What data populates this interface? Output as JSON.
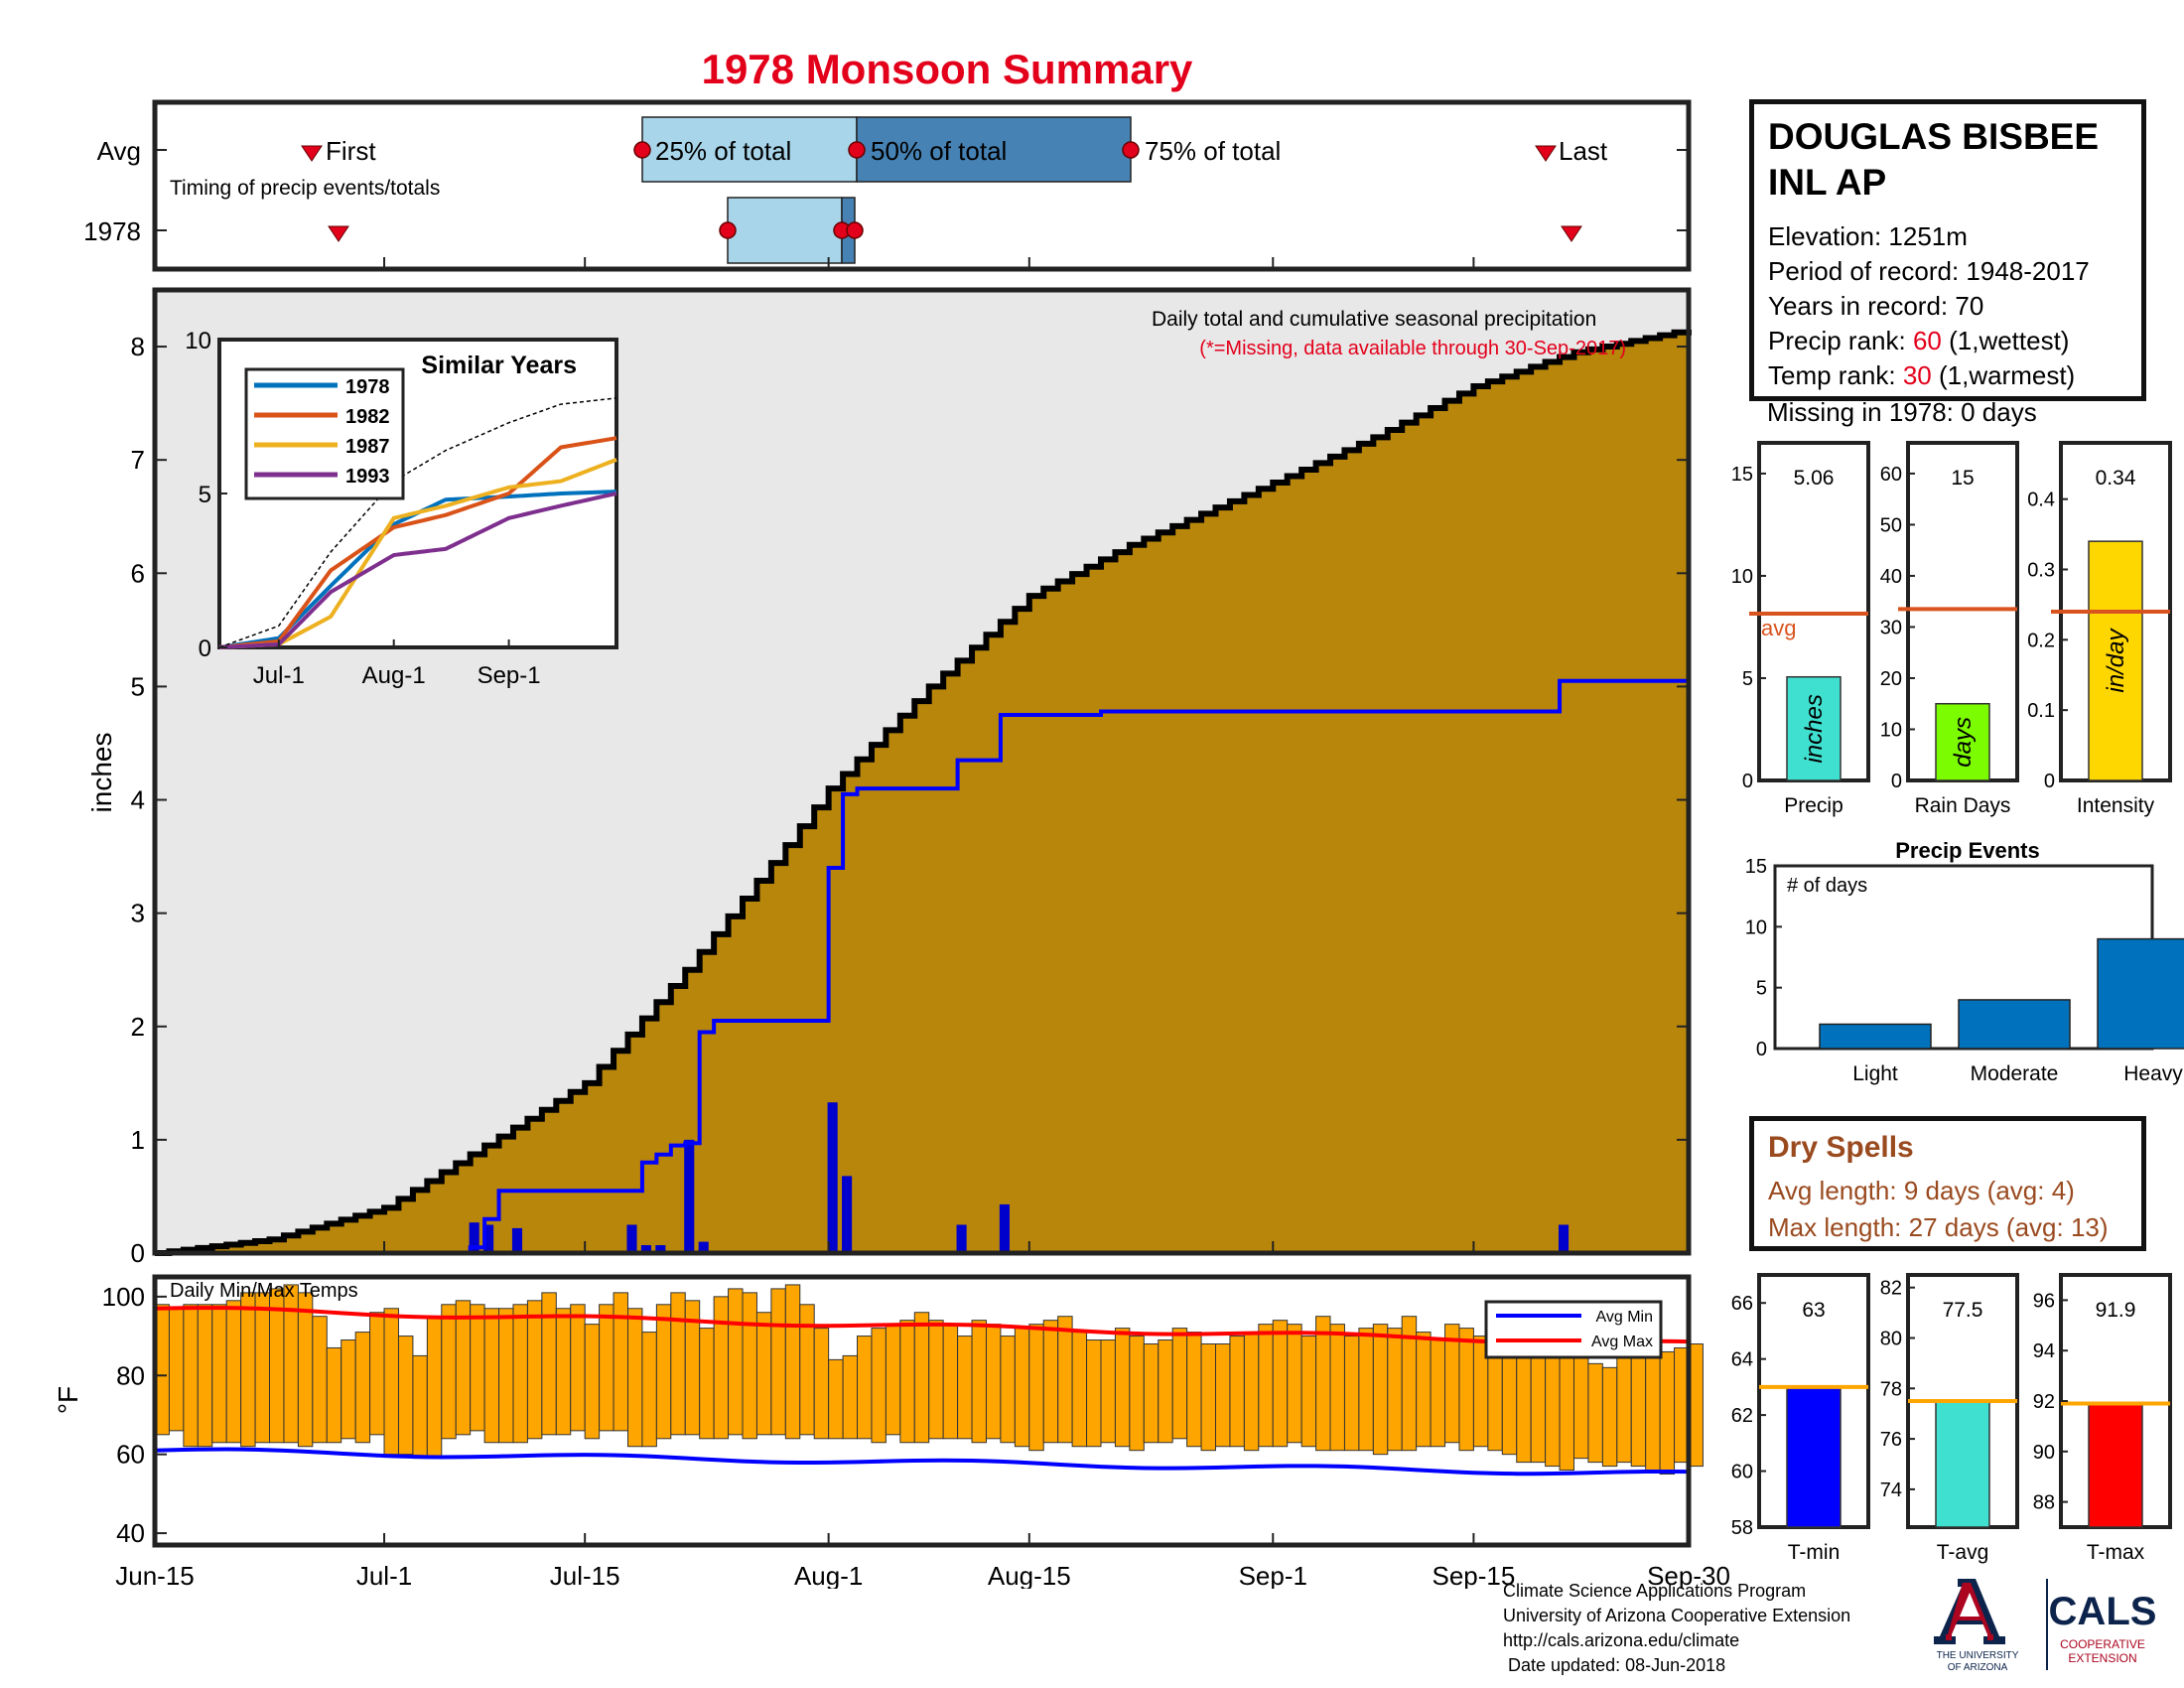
{
  "title": "1978 Monsoon Summary",
  "station": {
    "name": "DOUGLAS BISBEE\nINL AP",
    "elevation": "Elevation: 1251m",
    "period": "Period of record: 1948-2017",
    "years": "Years in record: 70",
    "precip_rank_label": "Precip rank: ",
    "precip_rank": "60",
    "precip_rank_note": " (1,wettest)",
    "temp_rank_label": "Temp rank: ",
    "temp_rank": "30",
    "temp_rank_note": " (1,warmest)",
    "missing": "Missing in 1978: 0 days"
  },
  "timing": {
    "row_labels": [
      "Avg",
      "1978"
    ],
    "note": "Timing of precip events/totals",
    "first_label": "First",
    "last_label": "Last",
    "p25_label": "25% of total",
    "p50_label": "50% of total",
    "p75_label": "75% of total"
  },
  "main_chart": {
    "annotation": "Daily total and cumulative seasonal precipitation",
    "missing_note": "(*=Missing, data available through 30-Sep-2017)",
    "ylabel": "inches",
    "yticks": [
      "0",
      "1",
      "2",
      "3",
      "4",
      "5",
      "6",
      "7",
      "8"
    ],
    "xticks": [
      "Jun-15",
      "Jul-1",
      "Jul-15",
      "Aug-1",
      "Aug-15",
      "Sep-1",
      "Sep-15",
      "Sep-30"
    ]
  },
  "inset": {
    "title": "Similar Years",
    "yticks": [
      "0",
      "5",
      "10"
    ],
    "xticks": [
      "Jul-1",
      "Aug-1",
      "Sep-1"
    ],
    "legend": [
      "1978",
      "1982",
      "1987",
      "1993"
    ]
  },
  "temp_chart": {
    "title": "Daily Min/Max Temps",
    "ylabel": "°F",
    "yticks": [
      "40",
      "60",
      "80",
      "100"
    ],
    "legend": [
      "Avg Min",
      "Avg Max"
    ]
  },
  "stats": {
    "precip": {
      "label": "Precip",
      "value_text": "5.06",
      "unit": "inches",
      "avg_text": "avg",
      "yticks": [
        "0",
        "5",
        "10",
        "15"
      ]
    },
    "rain_days": {
      "label": "Rain Days",
      "value_text": "15",
      "unit": "days",
      "yticks": [
        "0",
        "10",
        "20",
        "30",
        "40",
        "50",
        "60"
      ]
    },
    "intensity": {
      "label": "Intensity",
      "value_text": "0.34",
      "unit": "in/day",
      "yticks": [
        "0",
        "0.1",
        "0.2",
        "0.3",
        "0.4"
      ]
    }
  },
  "events": {
    "title": "Precip Events",
    "ylabel": "# of days",
    "categories": [
      "Light",
      "Moderate",
      "Heavy"
    ],
    "yticks": [
      "0",
      "5",
      "10",
      "15"
    ]
  },
  "dry_spells": {
    "title": "Dry Spells",
    "avg": "Avg length: 9 days (avg: 4)",
    "max": "Max length: 27 days (avg: 13)"
  },
  "temps": {
    "tmin": {
      "label": "T-min",
      "value_text": "63",
      "yticks": [
        "58",
        "60",
        "62",
        "64",
        "66"
      ]
    },
    "tavg": {
      "label": "T-avg",
      "value_text": "77.5",
      "yticks": [
        "74",
        "76",
        "78",
        "80",
        "82"
      ]
    },
    "tmax": {
      "label": "T-max",
      "value_text": "91.9",
      "yticks": [
        "88",
        "90",
        "92",
        "94",
        "96"
      ]
    }
  },
  "footer": "Climate Science Applications Program\nUniversity of Arizona Cooperative Extension\nhttp://cals.arizona.edu/climate\n Date updated: 08-Jun-2018",
  "logos": {
    "ua_name": "THE UNIVERSITY\nOF ARIZONA",
    "cals": "CALS",
    "cals_sub": "COOPERATIVE\nEXTENSION"
  },
  "colors": {
    "title_red": "#e3001b",
    "cumulative_avg": "#b8860b",
    "cumulative_year": "#0000ff",
    "temp_bar": "#ffa500",
    "avg_line": "#d9531e",
    "dry_text": "#9a4a1f",
    "box_light": "#a8d5ea",
    "box_dark": "#4682b4"
  },
  "chart_data": [
    {
      "type": "line",
      "title": "Daily total and cumulative seasonal precipitation",
      "ylabel": "inches",
      "ylim": [
        0,
        8.5
      ],
      "x_dates_note": "day of season",
      "series": [
        {
          "name": "Avg cumulative",
          "x": [
            "Jun-15",
            "Jun-23",
            "Jul-1",
            "Jul-8",
            "Jul-15",
            "Jul-22",
            "Jul-29",
            "Aug-1",
            "Aug-8",
            "Aug-15",
            "Aug-22",
            "Sep-1",
            "Sep-8",
            "Sep-15",
            "Sep-22",
            "Sep-30"
          ],
          "values": [
            0.0,
            0.12,
            0.4,
            0.95,
            1.5,
            2.5,
            3.6,
            4.1,
            5.0,
            5.8,
            6.25,
            6.8,
            7.2,
            7.65,
            7.95,
            8.15
          ]
        },
        {
          "name": "1978 cumulative",
          "x": [
            "Jun-15",
            "Jul-7",
            "Jul-8",
            "Jul-9",
            "Jul-10",
            "Jul-13",
            "Jul-18",
            "Jul-19",
            "Jul-20",
            "Jul-21",
            "Jul-22",
            "Jul-23",
            "Jul-24",
            "Jul-25",
            "Aug-1",
            "Aug-2",
            "Aug-3",
            "Aug-10",
            "Aug-13",
            "Aug-20",
            "Sep-20",
            "Sep-21",
            "Sep-30"
          ],
          "values": [
            0.0,
            0.05,
            0.3,
            0.55,
            0.55,
            0.55,
            0.55,
            0.8,
            0.87,
            0.95,
            0.97,
            1.95,
            2.05,
            2.05,
            3.4,
            4.05,
            4.1,
            4.35,
            4.75,
            4.78,
            4.78,
            5.05,
            5.06
          ]
        }
      ],
      "daily_bars": {
        "name": "1978 daily precip",
        "x": [
          "Jul-7",
          "Jul-8",
          "Jul-10",
          "Jul-18",
          "Jul-19",
          "Jul-20",
          "Jul-22",
          "Jul-23",
          "Aug-1",
          "Aug-2",
          "Aug-10",
          "Aug-13",
          "Sep-21"
        ],
        "values": [
          0.27,
          0.25,
          0.22,
          0.25,
          0.07,
          0.07,
          1.0,
          0.1,
          1.33,
          0.68,
          0.25,
          0.43,
          0.25
        ]
      }
    },
    {
      "type": "line",
      "title": "Similar Years",
      "ylim": [
        0,
        10
      ],
      "categories": [
        "Jun-15",
        "Jul-1",
        "Jul-15",
        "Aug-1",
        "Aug-15",
        "Sep-1",
        "Sep-15",
        "Sep-30"
      ],
      "series": [
        {
          "name": "1978",
          "values": [
            0,
            0.3,
            2.0,
            4.0,
            4.8,
            4.9,
            5.0,
            5.06
          ]
        },
        {
          "name": "1982",
          "values": [
            0,
            0.2,
            2.5,
            3.9,
            4.3,
            5.0,
            6.5,
            6.8
          ]
        },
        {
          "name": "1987",
          "values": [
            0,
            0.1,
            1.0,
            4.2,
            4.6,
            5.2,
            5.4,
            6.1
          ]
        },
        {
          "name": "1993",
          "values": [
            0,
            0.1,
            1.8,
            3.0,
            3.2,
            4.2,
            4.6,
            5.0
          ]
        },
        {
          "name": "avg",
          "values": [
            0,
            0.7,
            3.1,
            5.4,
            6.4,
            7.3,
            7.9,
            8.1
          ]
        }
      ]
    },
    {
      "type": "bar",
      "title": "Daily Min/Max Temps",
      "ylabel": "°F",
      "ylim": [
        37,
        105
      ],
      "note": "floating daily min-max bars, one per day Jun-15 to Sep-30",
      "daily_max": [
        98,
        97,
        98,
        98,
        98,
        99,
        101,
        101,
        102,
        103,
        101,
        95,
        87,
        89,
        91,
        96,
        97,
        90,
        85,
        95,
        98,
        99,
        98,
        97,
        97,
        98,
        99,
        101,
        97,
        98,
        93,
        98,
        101,
        97,
        91,
        98,
        101,
        99,
        92,
        100,
        102,
        101,
        96,
        102,
        103,
        98,
        92,
        84,
        85,
        90,
        92,
        93,
        94,
        96,
        94,
        93,
        90,
        94,
        93,
        90,
        92,
        93,
        94,
        95,
        91,
        89,
        89,
        92,
        90,
        88,
        89,
        92,
        91,
        88,
        88,
        90,
        91,
        93,
        94,
        93,
        90,
        95,
        93,
        90,
        92,
        93,
        92,
        95,
        91,
        89,
        93,
        92,
        90,
        88,
        89,
        91,
        93,
        92,
        88,
        85,
        83,
        82,
        85,
        86,
        88,
        86,
        87,
        88
      ],
      "daily_min": [
        65,
        66,
        62,
        62,
        63,
        63,
        62,
        63,
        63,
        63,
        62,
        63,
        63,
        64,
        63,
        65,
        60,
        60,
        59,
        59,
        64,
        65,
        66,
        63,
        63,
        63,
        64,
        65,
        65,
        66,
        64,
        66,
        66,
        62,
        62,
        64,
        65,
        65,
        64,
        64,
        65,
        64,
        65,
        65,
        64,
        65,
        64,
        64,
        64,
        64,
        63,
        65,
        63,
        63,
        64,
        64,
        64,
        63,
        64,
        63,
        62,
        61,
        63,
        63,
        62,
        62,
        63,
        62,
        61,
        63,
        63,
        64,
        62,
        61,
        62,
        62,
        61,
        62,
        62,
        63,
        62,
        61,
        61,
        61,
        61,
        60,
        61,
        61,
        62,
        62,
        63,
        61,
        62,
        61,
        60,
        58,
        58,
        57,
        56,
        59,
        58,
        57,
        58,
        57,
        56,
        55,
        58,
        57
      ],
      "series": [
        {
          "name": "Avg Min",
          "values_start_end": [
            61,
            55
          ]
        },
        {
          "name": "Avg Max",
          "values_start_end": [
            97,
            88
          ]
        }
      ]
    },
    {
      "type": "bar",
      "title": "Precip",
      "categories": [
        "Precip"
      ],
      "values": [
        5.06
      ],
      "avg": 8.15,
      "ylim": [
        0,
        16.5
      ]
    },
    {
      "type": "bar",
      "title": "Rain Days",
      "categories": [
        "Rain Days"
      ],
      "values": [
        15
      ],
      "avg": 33.5,
      "ylim": [
        0,
        66
      ]
    },
    {
      "type": "bar",
      "title": "Intensity",
      "categories": [
        "Intensity"
      ],
      "values": [
        0.34
      ],
      "avg": 0.24,
      "ylim": [
        0,
        0.48
      ]
    },
    {
      "type": "bar",
      "title": "Precip Events",
      "ylabel": "# of days",
      "categories": [
        "Light",
        "Moderate",
        "Heavy"
      ],
      "values": [
        2,
        4,
        9
      ],
      "ylim": [
        0,
        15
      ]
    },
    {
      "type": "bar",
      "title": "T-min",
      "categories": [
        "T-min"
      ],
      "values": [
        63
      ],
      "avg": 63,
      "ylim": [
        58,
        67
      ]
    },
    {
      "type": "bar",
      "title": "T-avg",
      "categories": [
        "T-avg"
      ],
      "values": [
        77.5
      ],
      "avg": 77.5,
      "ylim": [
        72.5,
        82.5
      ]
    },
    {
      "type": "bar",
      "title": "T-max",
      "categories": [
        "T-max"
      ],
      "values": [
        91.9
      ],
      "avg": 91.9,
      "ylim": [
        87,
        97
      ]
    }
  ]
}
